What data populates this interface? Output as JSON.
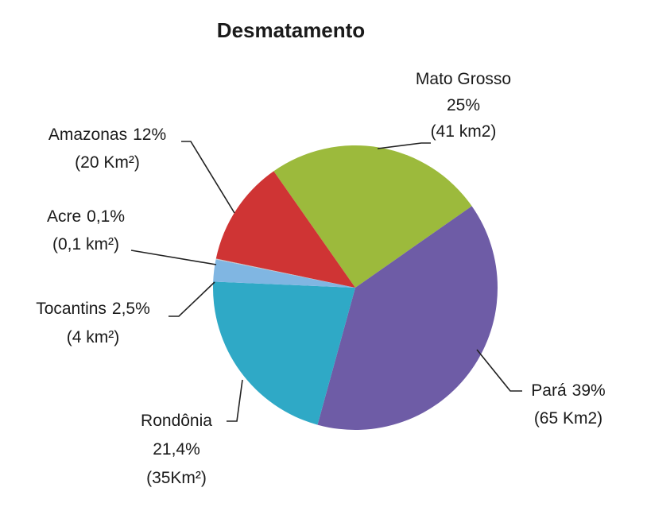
{
  "chart_data": {
    "type": "pie",
    "title": "Desmatamento",
    "categories": [
      "Mato Grosso",
      "Pará",
      "Rondônia",
      "Tocantins",
      "Acre",
      "Amazonas"
    ],
    "values": [
      25,
      39,
      21.4,
      2.5,
      0.1,
      12
    ],
    "value_labels": [
      "25%",
      "39%",
      "21,4%",
      "2,5%",
      "0,1%",
      "12%"
    ],
    "area_labels": [
      "(41 km2)",
      "(65 Km2)",
      "(35Km²)",
      "(4 km²)",
      "(0,1 km²)",
      "(20 Km²)"
    ],
    "colors": [
      "#9cba3c",
      "#6e5ca6",
      "#2fa9c6",
      "#80b6e2",
      "#c3c7cc",
      "#cf3434"
    ]
  }
}
